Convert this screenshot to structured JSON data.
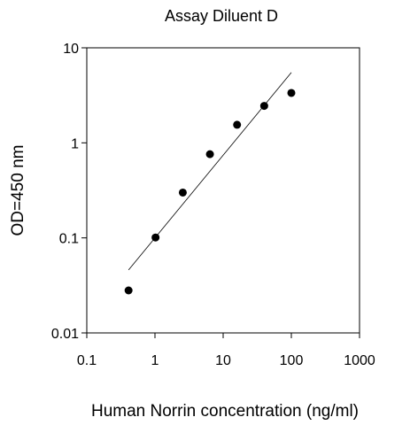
{
  "chart_data": {
    "type": "scatter",
    "title": "Assay Diluent D",
    "xlabel": "Human Norrin concentration (ng/ml)",
    "ylabel": "OD=450 nm",
    "x_scale": "log",
    "y_scale": "log",
    "xlim": [
      0.1,
      1000
    ],
    "ylim": [
      0.01,
      10
    ],
    "x_ticks": [
      "0.1",
      "1",
      "10",
      "100",
      "1000"
    ],
    "y_ticks": [
      "0.01",
      "0.1",
      "1",
      "10"
    ],
    "grid": false,
    "series": [
      {
        "points": [
          {
            "x": 0.41,
            "y": 0.028
          },
          {
            "x": 1.02,
            "y": 0.101
          },
          {
            "x": 2.56,
            "y": 0.3
          },
          {
            "x": 6.4,
            "y": 0.76
          },
          {
            "x": 16,
            "y": 1.55
          },
          {
            "x": 40,
            "y": 2.45
          },
          {
            "x": 100,
            "y": 3.35
          }
        ]
      }
    ],
    "trendline": {
      "x": [
        0.41,
        100
      ],
      "y": [
        0.046,
        5.5
      ]
    }
  }
}
